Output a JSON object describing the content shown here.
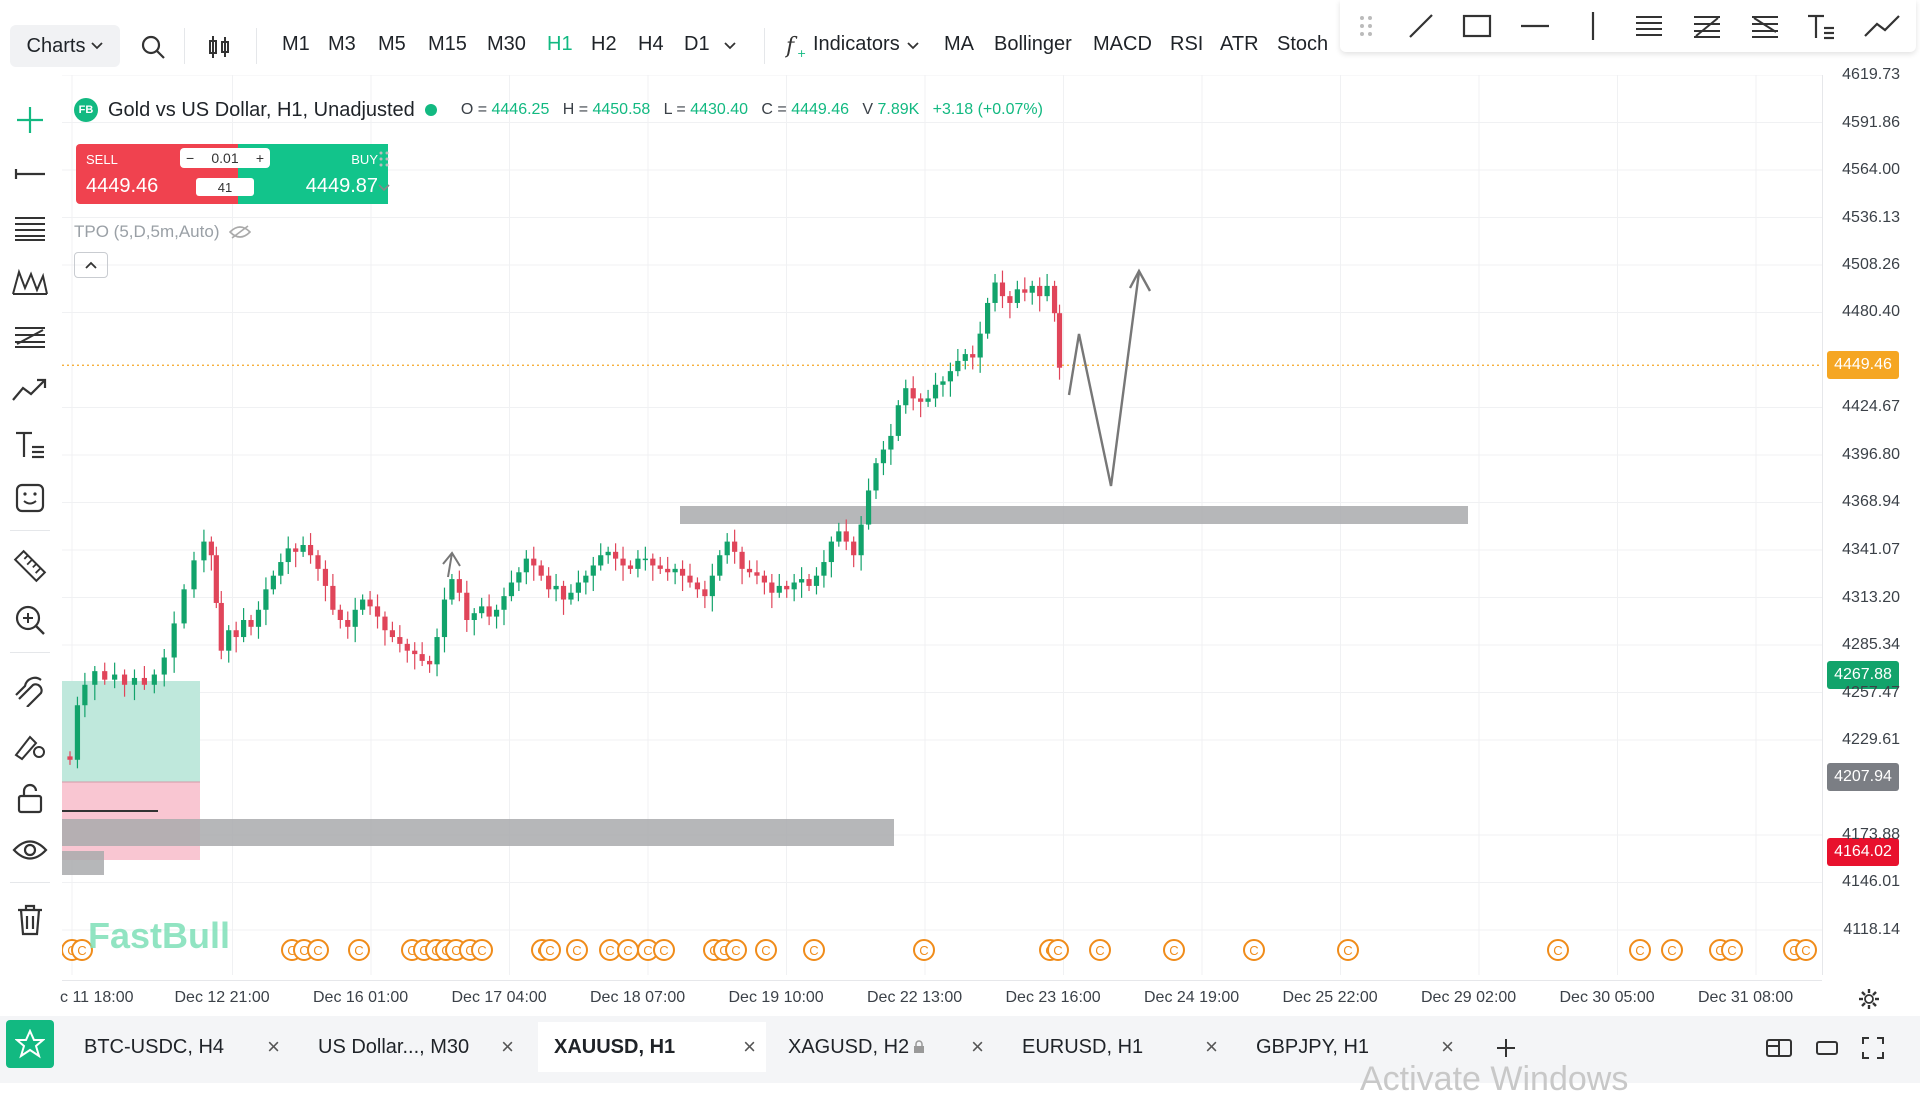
{
  "toolbar": {
    "charts_label": "Charts",
    "timeframes": [
      "M1",
      "M3",
      "M5",
      "M15",
      "M30",
      "H1",
      "H2",
      "H4",
      "D1"
    ],
    "active_timeframe": "H1",
    "indicators_label": "Indicators",
    "quick_indicators": [
      "MA",
      "Bollinger",
      "MACD",
      "RSI",
      "ATR",
      "Stoch"
    ]
  },
  "legend": {
    "badge": "FB",
    "title": "Gold vs US Dollar, H1, Unadjusted",
    "open_label": "O =",
    "open": "4446.25",
    "high_label": "H =",
    "high": "4450.58",
    "low_label": "L =",
    "low": "4430.40",
    "close_label": "C =",
    "close": "4449.46",
    "volume_label": "V",
    "volume": "7.89K",
    "change": "+3.18 (+0.07%)"
  },
  "trade_panel": {
    "sell_label": "SELL",
    "sell_price": "4449.46",
    "buy_label": "BUY",
    "buy_price": "4449.87",
    "lot_size": "0.01",
    "spread": "41",
    "minus": "−",
    "plus": "+"
  },
  "indicator_label": "TPO (5,D,5m,Auto)",
  "watermark": "FastBull",
  "price_axis": {
    "labels": [
      "4619.73",
      "4591.86",
      "4564.00",
      "4536.13",
      "4508.26",
      "4480.40",
      "4424.67",
      "4396.80",
      "4368.94",
      "4341.07",
      "4313.20",
      "4285.34",
      "4257.47",
      "4229.61",
      "4173.88",
      "4146.01",
      "4118.14"
    ],
    "current_price": "4449.46",
    "tag_green": "4267.88",
    "tag_gray": "4207.94",
    "tag_red": "4164.02"
  },
  "time_axis": {
    "labels": [
      "c 11 18:00",
      "Dec 12 21:00",
      "Dec 16 01:00",
      "Dec 17 04:00",
      "Dec 18 07:00",
      "Dec 19 10:00",
      "Dec 22 13:00",
      "Dec 23 16:00",
      "Dec 24 19:00",
      "Dec 25 22:00",
      "Dec 29 02:00",
      "Dec 30 05:00",
      "Dec 31 08:00"
    ]
  },
  "tabs": [
    {
      "label": "BTC-USDC, H4",
      "active": false
    },
    {
      "label": "US Dollar..., M30",
      "active": false
    },
    {
      "label": "XAUUSD, H1",
      "active": true
    },
    {
      "label": "XAGUSD, H2",
      "active": false,
      "locked": true
    },
    {
      "label": "EURUSD, H1",
      "active": false
    },
    {
      "label": "GBPJPY, H1",
      "active": false
    }
  ],
  "os_overlay": "Activate Windows",
  "colors": {
    "up": "#12a36b",
    "down": "#e0455a",
    "accent": "#12b981",
    "current_price_tag": "#f5a623",
    "zone": "#a9aaad"
  }
}
